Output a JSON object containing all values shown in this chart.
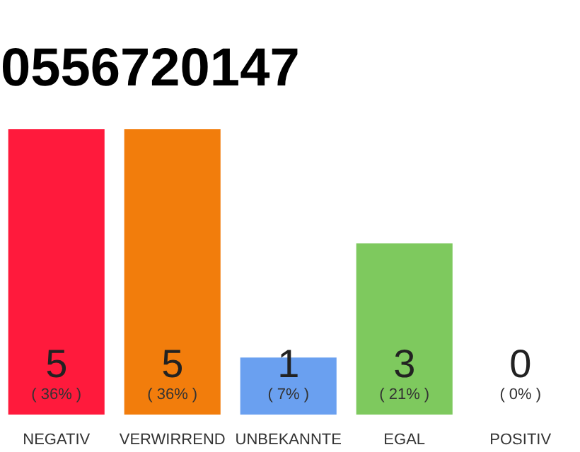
{
  "chart_data": {
    "type": "bar",
    "title": "0556720147",
    "categories": [
      "NEGATIV",
      "VERWIRREND",
      "UNBEKANNTE",
      "EGAL",
      "POSITIV"
    ],
    "values": [
      5,
      5,
      1,
      3,
      0
    ],
    "colors": [
      "#ff1a3c",
      "#f27d0c",
      "#6aa0f0",
      "#7ec95e",
      "#9e9e9e"
    ],
    "value_labels": [
      "5\n( 36% )",
      "5\n( 36% )",
      "1\n( 7% )",
      "3\n( 21% )",
      "0\n( 0% )"
    ],
    "grid": false
  }
}
